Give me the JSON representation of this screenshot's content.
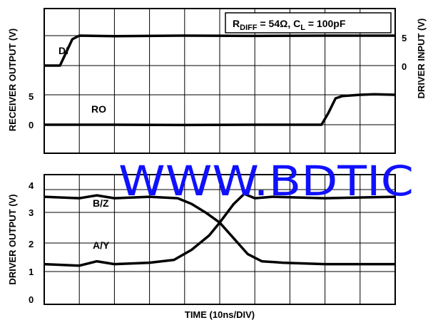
{
  "chart_data": [
    {
      "type": "line",
      "panel": "top",
      "condition": "R₂₁₂₂ = 54Ω, Cₗ = 100pF",
      "annotation": {
        "r_sym": "R",
        "r_sub": "DIFF",
        "r_val": " = 54Ω, C",
        "c_sub": "L",
        "c_val": " = 100pF"
      },
      "ylabel_left": "RECEIVER OUTPUT (V)",
      "ylabel_right": "DRIVER INPUT (V)",
      "yticks_left": [
        "5",
        "0"
      ],
      "yticks_right": [
        "5",
        "0"
      ],
      "grid": true,
      "series": [
        {
          "name": "DI",
          "unit": "V",
          "points": [
            [
              0,
              0
            ],
            [
              0.45,
              0
            ],
            [
              0.8,
              4.4
            ],
            [
              1.0,
              5
            ],
            [
              2,
              4.9
            ],
            [
              4,
              5
            ],
            [
              6,
              4.95
            ],
            [
              8,
              5
            ],
            [
              10,
              5
            ]
          ]
        },
        {
          "name": "RO",
          "unit": "V",
          "points": [
            [
              0,
              0
            ],
            [
              2,
              0
            ],
            [
              4,
              -0.05
            ],
            [
              6,
              0
            ],
            [
              7.9,
              0
            ],
            [
              8.1,
              2
            ],
            [
              8.3,
              4.4
            ],
            [
              8.5,
              4.8
            ],
            [
              9,
              5
            ],
            [
              9.4,
              5.1
            ],
            [
              10,
              5
            ]
          ]
        }
      ]
    },
    {
      "type": "line",
      "panel": "bottom",
      "ylabel": "DRIVER OUTPUT (V)",
      "xlabel": "TIME (10ns/DIV)",
      "yticks": [
        "4",
        "3",
        "2",
        "1",
        "0"
      ],
      "ylim": [
        0,
        4.2
      ],
      "grid": true,
      "series": [
        {
          "name": "B/Z",
          "unit": "V",
          "points": [
            [
              0,
              3.75
            ],
            [
              1,
              3.7
            ],
            [
              1.5,
              3.8
            ],
            [
              2,
              3.7
            ],
            [
              3,
              3.75
            ],
            [
              3.8,
              3.7
            ],
            [
              4.2,
              3.5
            ],
            [
              4.6,
              3.2
            ],
            [
              5,
              2.85
            ],
            [
              5.4,
              2.3
            ],
            [
              5.8,
              1.75
            ],
            [
              6.2,
              1.5
            ],
            [
              6.8,
              1.45
            ],
            [
              8,
              1.4
            ],
            [
              10,
              1.4
            ]
          ]
        },
        {
          "name": "A/Y",
          "unit": "V",
          "points": [
            [
              0,
              1.4
            ],
            [
              1,
              1.35
            ],
            [
              1.5,
              1.5
            ],
            [
              2,
              1.4
            ],
            [
              3,
              1.45
            ],
            [
              3.7,
              1.55
            ],
            [
              4.2,
              1.9
            ],
            [
              4.7,
              2.4
            ],
            [
              5,
              2.85
            ],
            [
              5.4,
              3.5
            ],
            [
              5.7,
              3.85
            ],
            [
              6,
              3.7
            ],
            [
              6.5,
              3.75
            ],
            [
              8,
              3.7
            ],
            [
              10,
              3.75
            ]
          ]
        }
      ]
    }
  ],
  "watermark": "WWW.BDTIC"
}
